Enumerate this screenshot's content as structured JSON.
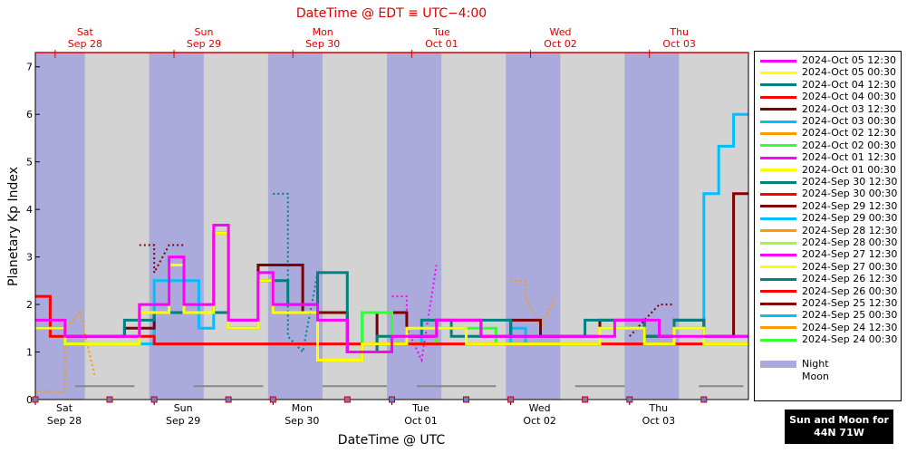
{
  "title": "DateTime @ EDT ≡ UTC−4:00",
  "button": {
    "line1": "Sun and Moon for",
    "line2": "44N 71W"
  },
  "chart_data": {
    "type": "line",
    "xlabel": "DateTime @ UTC",
    "ylabel": "Planetary Kp Index",
    "xlim": [
      "2024-09-28 00:00",
      "2024-10-04 00:00"
    ],
    "ylim": [
      0,
      7.3
    ],
    "yticks": [
      0,
      1,
      2,
      3,
      4,
      5,
      6,
      7
    ],
    "bottom_ticks": [
      {
        "x": "2024-09-28 00:00",
        "day": "Sat",
        "date": "Sep 28"
      },
      {
        "x": "2024-09-29 00:00",
        "day": "Sun",
        "date": "Sep 29"
      },
      {
        "x": "2024-09-30 00:00",
        "day": "Mon",
        "date": "Sep 30"
      },
      {
        "x": "2024-10-01 00:00",
        "day": "Tue",
        "date": "Oct 01"
      },
      {
        "x": "2024-10-02 00:00",
        "day": "Wed",
        "date": "Oct 02"
      },
      {
        "x": "2024-10-03 00:00",
        "day": "Thu",
        "date": "Oct 03"
      }
    ],
    "top_ticks": [
      {
        "x": "2024-09-28 04:00",
        "day": "Sat",
        "date": "Sep 28"
      },
      {
        "x": "2024-09-29 04:00",
        "day": "Sun",
        "date": "Sep 29"
      },
      {
        "x": "2024-09-30 04:00",
        "day": "Mon",
        "date": "Sep 30"
      },
      {
        "x": "2024-10-01 04:00",
        "day": "Tue",
        "date": "Oct 01"
      },
      {
        "x": "2024-10-02 04:00",
        "day": "Wed",
        "date": "Oct 02"
      },
      {
        "x": "2024-10-03 04:00",
        "day": "Thu",
        "date": "Oct 03"
      }
    ],
    "night_bands": [
      [
        "2024-09-28 00:00",
        "2024-09-28 10:00"
      ],
      [
        "2024-09-28 23:00",
        "2024-09-29 10:00"
      ],
      [
        "2024-09-29 23:00",
        "2024-09-30 10:00"
      ],
      [
        "2024-09-30 23:00",
        "2024-10-01 10:00"
      ],
      [
        "2024-10-01 23:00",
        "2024-10-02 10:00"
      ],
      [
        "2024-10-02 23:00",
        "2024-10-03 10:00"
      ]
    ],
    "moon_bars": [
      [
        "2024-09-28 08:00",
        "2024-09-28 20:00"
      ],
      [
        "2024-09-29 08:00",
        "2024-09-29 22:00"
      ],
      [
        "2024-09-30 10:00",
        "2024-09-30 23:00"
      ],
      [
        "2024-10-01 05:00",
        "2024-10-01 21:00"
      ],
      [
        "2024-10-02 13:00",
        "2024-10-02 23:00"
      ],
      [
        "2024-10-03 14:00",
        "2024-10-03 23:00"
      ]
    ],
    "moon_events": [
      "2024-09-28 00:00",
      "2024-09-28 15:00",
      "2024-09-29 00:00",
      "2024-09-29 15:00",
      "2024-09-30 00:00",
      "2024-09-30 15:00",
      "2024-10-01 00:00",
      "2024-10-01 15:00",
      "2024-10-02 00:00",
      "2024-10-02 15:00",
      "2024-10-03 00:00",
      "2024-10-03 15:00"
    ],
    "series": [
      {
        "name": "2024-Oct 05 12:30",
        "color": "#ff00ff",
        "start": "2024-09-28 00:00",
        "values": [
          1.67,
          1.67,
          1.33,
          1.33,
          1.33,
          1.33,
          1.33,
          2.0,
          2.0,
          3.0,
          2.0,
          2.0,
          3.67,
          1.67,
          1.67,
          2.67,
          2.0,
          2.0,
          2.0,
          1.67,
          1.67,
          1.0,
          1.0,
          1.0,
          1.33,
          1.33,
          1.33,
          1.67,
          1.67,
          1.67,
          1.33,
          1.33,
          1.33,
          1.33,
          1.33,
          1.33,
          1.33,
          1.33,
          1.33,
          1.67,
          1.67,
          1.67,
          1.33,
          1.33,
          1.33,
          1.33,
          1.33,
          1.33
        ]
      },
      {
        "name": "2024-Oct 05 00:30",
        "color": "#ffff00",
        "start": "2024-09-28 00:00",
        "values": [
          1.5,
          1.5,
          1.17,
          1.17,
          1.17,
          1.17,
          1.17,
          1.83,
          1.83,
          2.83,
          1.83,
          1.83,
          3.5,
          1.5,
          1.5,
          2.5,
          1.83,
          1.83,
          1.83,
          0.83,
          0.83,
          0.83,
          1.17,
          1.17,
          1.17,
          1.5,
          1.5,
          1.5,
          1.5,
          1.17,
          1.17,
          1.17,
          1.17,
          1.17,
          1.17,
          1.17,
          1.17,
          1.17,
          1.5,
          1.5,
          1.5,
          1.17,
          1.17,
          1.5,
          1.5,
          1.17,
          1.17,
          1.17
        ]
      },
      {
        "name": "2024-Oct 04 12:30",
        "color": "#008080",
        "start": "2024-09-28 00:00",
        "values": [
          1.5,
          1.5,
          1.33,
          1.33,
          1.33,
          1.33,
          1.67,
          1.67,
          1.83,
          1.83,
          1.83,
          1.83,
          1.83,
          1.67,
          1.67,
          2.5,
          2.5,
          2.0,
          2.0,
          2.67,
          2.67,
          1.0,
          1.0,
          1.33,
          1.33,
          1.33,
          1.67,
          1.67,
          1.33,
          1.33,
          1.67,
          1.67,
          1.33,
          1.33,
          1.33,
          1.33,
          1.33,
          1.67,
          1.67,
          1.67,
          1.67,
          1.33,
          1.33,
          1.67,
          1.67,
          1.33,
          1.33,
          1.33
        ]
      },
      {
        "name": "2024-Oct 04 00:30",
        "color": "#ff0000",
        "start": "2024-09-28 00:00",
        "values": [
          2.17,
          1.33,
          1.33,
          1.33,
          1.33,
          1.33,
          1.33,
          1.33,
          1.17,
          1.17,
          1.17,
          1.17,
          1.17,
          1.17,
          1.17,
          1.17,
          1.17,
          1.17,
          1.17,
          1.17,
          1.17,
          1.17,
          1.17,
          1.17,
          1.17,
          1.17,
          1.17,
          1.17,
          1.17,
          1.17,
          1.17,
          1.17,
          1.17,
          1.17,
          1.17,
          1.17,
          1.17,
          1.17,
          1.17,
          1.17,
          1.17,
          1.17,
          1.17,
          1.17,
          1.17,
          1.17,
          1.17,
          1.17
        ]
      },
      {
        "name": "2024-Sep 24 00:30",
        "color": "#33ff33",
        "start": "2024-09-28 00:00",
        "values": [
          1.5,
          1.5,
          1.17,
          1.17,
          1.17,
          1.17,
          1.17,
          1.83,
          1.83,
          1.83,
          1.83,
          1.83,
          1.83,
          1.5,
          1.5,
          2.5,
          1.83,
          1.83,
          1.83,
          0.83,
          0.83,
          0.83,
          1.83,
          1.83,
          1.17,
          1.17,
          1.17,
          1.5,
          1.5,
          1.5,
          1.5,
          1.17,
          1.17,
          1.17,
          1.17,
          1.17,
          1.17,
          1.17,
          1.5,
          1.5,
          1.5,
          1.17,
          1.17,
          1.5,
          1.5,
          1.17,
          1.17,
          1.17
        ]
      },
      {
        "name": "2024-Oct 03 12:30",
        "color": "#800000",
        "start": "2024-09-28 00:00",
        "values": [
          1.5,
          1.5,
          1.33,
          1.33,
          1.33,
          1.33,
          1.5,
          1.5,
          1.83,
          1.83,
          1.83,
          1.83,
          3.5,
          1.5,
          1.5,
          2.83,
          2.83,
          2.83,
          1.83,
          1.83,
          1.83,
          1.0,
          1.0,
          1.83,
          1.83,
          1.33,
          1.33,
          1.67,
          1.67,
          1.67,
          1.33,
          1.33,
          1.67,
          1.67,
          1.33,
          1.33,
          1.33,
          1.33,
          1.67,
          1.67,
          1.67,
          1.33,
          1.33,
          1.67,
          1.67,
          1.33,
          1.33,
          4.33
        ]
      },
      {
        "name": "2024-Oct 03 00:30",
        "color": "#00bfff",
        "start": "2024-09-28 00:00",
        "values": [
          1.5,
          1.5,
          1.17,
          1.17,
          1.17,
          1.17,
          1.17,
          1.17,
          2.5,
          2.5,
          2.5,
          1.5,
          3.5,
          1.5,
          1.5,
          2.5,
          1.83,
          1.83,
          1.83,
          0.83,
          0.83,
          0.83,
          1.83,
          1.17,
          1.17,
          1.17,
          1.5,
          1.5,
          1.5,
          1.17,
          1.17,
          1.17,
          1.5,
          1.17,
          1.17,
          1.17,
          1.17,
          1.17,
          1.5,
          1.5,
          1.5,
          1.17,
          1.17,
          1.5,
          1.5,
          4.33,
          5.33,
          6.0
        ]
      }
    ],
    "legend": [
      {
        "label": "2024-Oct 05 12:30",
        "color": "#ff00ff"
      },
      {
        "label": "2024-Oct 05 00:30",
        "color": "#ffff00"
      },
      {
        "label": "2024-Oct 04 12:30",
        "color": "#008080"
      },
      {
        "label": "2024-Oct 04 00:30",
        "color": "#ff0000"
      },
      {
        "label": "2024-Oct 03 12:30",
        "color": "#800000"
      },
      {
        "label": "2024-Oct 03 00:30",
        "color": "#00bfff"
      },
      {
        "label": "2024-Oct 02 12:30",
        "color": "#ff9900"
      },
      {
        "label": "2024-Oct 02 00:30",
        "color": "#33ff33"
      },
      {
        "label": "2024-Oct 01 12:30",
        "color": "#ff00ff"
      },
      {
        "label": "2024-Oct 01 00:30",
        "color": "#ffff00"
      },
      {
        "label": "2024-Sep 30 12:30",
        "color": "#008080"
      },
      {
        "label": "2024-Sep 30 00:30",
        "color": "#ff0000"
      },
      {
        "label": "2024-Sep 29 12:30",
        "color": "#800000"
      },
      {
        "label": "2024-Sep 29 00:30",
        "color": "#00bfff"
      },
      {
        "label": "2024-Sep 28 12:30",
        "color": "#ff9900"
      },
      {
        "label": "2024-Sep 28 00:30",
        "color": "#99ff33"
      },
      {
        "label": "2024-Sep 27 12:30",
        "color": "#ff00ff"
      },
      {
        "label": "2024-Sep 27 00:30",
        "color": "#ffff00"
      },
      {
        "label": "2024-Sep 26 12:30",
        "color": "#008080"
      },
      {
        "label": "2024-Sep 26 00:30",
        "color": "#ff0000"
      },
      {
        "label": "2024-Sep 25 12:30",
        "color": "#800000"
      },
      {
        "label": "2024-Sep 25 00:30",
        "color": "#00bfff"
      },
      {
        "label": "2024-Sep 24 12:30",
        "color": "#ff9900"
      },
      {
        "label": "2024-Sep 24 00:30",
        "color": "#33ff33"
      }
    ],
    "legend_extra": [
      {
        "label": "Night",
        "color": "#aaaadd"
      },
      {
        "label": "Moon",
        "color": "#ffffff"
      }
    ],
    "dotted_series": [
      {
        "color": "#ff9900",
        "points": [
          [
            "2024-09-28 00:00",
            0.17
          ],
          [
            "2024-09-28 06:00",
            0.17
          ],
          [
            "2024-09-28 06:00",
            1.5
          ],
          [
            "2024-09-28 09:00",
            1.83
          ],
          [
            "2024-09-28 12:00",
            0.5
          ]
        ]
      },
      {
        "color": "#800000",
        "points": [
          [
            "2024-09-28 21:00",
            3.25
          ],
          [
            "2024-09-29 00:00",
            3.25
          ],
          [
            "2024-09-29 00:00",
            2.67
          ],
          [
            "2024-09-29 03:00",
            3.25
          ],
          [
            "2024-09-29 06:00",
            3.25
          ]
        ]
      },
      {
        "color": "#008080",
        "points": [
          [
            "2024-09-30 00:00",
            4.33
          ],
          [
            "2024-09-30 03:00",
            4.33
          ],
          [
            "2024-09-30 03:00",
            1.33
          ],
          [
            "2024-09-30 06:00",
            1.0
          ],
          [
            "2024-09-30 09:00",
            2.67
          ]
        ]
      },
      {
        "color": "#ff00ff",
        "points": [
          [
            "2024-10-01 00:00",
            2.17
          ],
          [
            "2024-10-01 03:00",
            2.17
          ],
          [
            "2024-10-01 03:00",
            1.5
          ],
          [
            "2024-10-01 06:00",
            0.83
          ],
          [
            "2024-10-01 09:00",
            2.83
          ]
        ]
      },
      {
        "color": "#ff9900",
        "points": [
          [
            "2024-10-02 00:00",
            2.5
          ],
          [
            "2024-10-02 03:00",
            2.5
          ],
          [
            "2024-10-02 03:00",
            2.17
          ],
          [
            "2024-10-02 06:00",
            1.5
          ],
          [
            "2024-10-02 09:00",
            2.17
          ]
        ]
      },
      {
        "color": "#800000",
        "points": [
          [
            "2024-10-03 00:00",
            1.33
          ],
          [
            "2024-10-03 03:00",
            1.67
          ],
          [
            "2024-10-03 06:00",
            2.0
          ],
          [
            "2024-10-03 09:00",
            2.0
          ]
        ]
      }
    ]
  }
}
